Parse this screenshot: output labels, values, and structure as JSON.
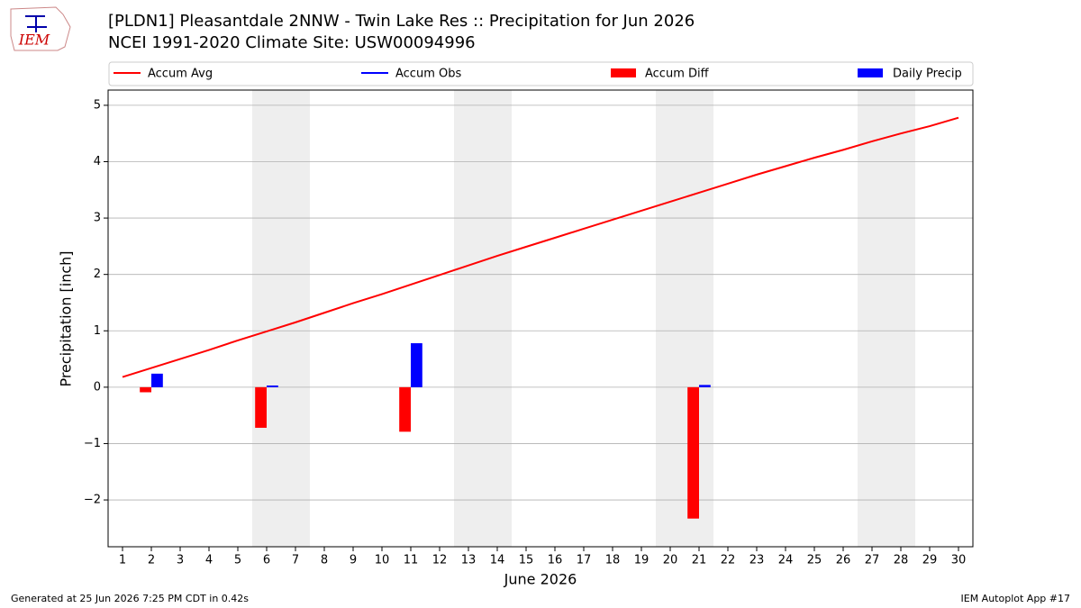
{
  "logo_text": "IEM",
  "footer": {
    "left": "Generated at 25 Jun 2026 7:25 PM CDT in 0.42s",
    "right": "IEM Autoplot App #17"
  },
  "chart_data": {
    "type": "bar",
    "title": "[PLDN1] Pleasantdale 2NNW - Twin Lake Res :: Precipitation for Jun 2026",
    "subtitle": "NCEI 1991-2020 Climate Site: USW00094996",
    "x_label": "June 2026",
    "y_label": "Precipitation [inch]",
    "x": [
      1,
      2,
      3,
      4,
      5,
      6,
      7,
      8,
      9,
      10,
      11,
      12,
      13,
      14,
      15,
      16,
      17,
      18,
      19,
      20,
      21,
      22,
      23,
      24,
      25,
      26,
      27,
      28,
      29,
      30
    ],
    "xlim": [
      0.5,
      30.5
    ],
    "xticks": [
      1,
      2,
      3,
      4,
      5,
      6,
      7,
      8,
      9,
      10,
      11,
      12,
      13,
      14,
      15,
      16,
      17,
      18,
      19,
      20,
      21,
      22,
      23,
      24,
      25,
      26,
      27,
      28,
      29,
      30
    ],
    "ylim": [
      -2.83,
      5.27
    ],
    "yticks": [
      {
        "value": -2,
        "label": "−2"
      },
      {
        "value": -1,
        "label": "−1"
      },
      0,
      1,
      2,
      3,
      4,
      5
    ],
    "grid": true,
    "shaded_days": [
      6,
      7,
      13,
      14,
      20,
      21,
      27,
      28
    ],
    "series": [
      {
        "name": "Accum Avg",
        "type": "line",
        "color": "#ff0000",
        "values": [
          0.18,
          0.34,
          0.5,
          0.66,
          0.83,
          0.99,
          1.15,
          1.32,
          1.49,
          1.65,
          1.82,
          1.99,
          2.16,
          2.33,
          2.49,
          2.65,
          2.81,
          2.97,
          3.13,
          3.29,
          3.45,
          3.61,
          3.77,
          3.92,
          4.07,
          4.21,
          4.36,
          4.5,
          4.63,
          4.78
        ]
      },
      {
        "name": "Accum Obs",
        "type": "line",
        "color": "#0000ff",
        "values": [
          null,
          null,
          null,
          null,
          null,
          null,
          null,
          null,
          null,
          null,
          null,
          null,
          null,
          null,
          null,
          null,
          null,
          null,
          null,
          null,
          null,
          null,
          null,
          null,
          null,
          null,
          null,
          null,
          null,
          null
        ]
      },
      {
        "name": "Accum Diff",
        "type": "bar",
        "color": "#ff0000",
        "values": [
          null,
          -0.09,
          null,
          null,
          null,
          -0.72,
          null,
          null,
          null,
          null,
          -0.79,
          null,
          null,
          null,
          null,
          null,
          null,
          null,
          null,
          null,
          -2.33,
          null,
          null,
          null,
          null,
          null,
          null,
          null,
          null,
          null
        ]
      },
      {
        "name": "Daily Precip",
        "type": "bar",
        "color": "#0000ff",
        "values": [
          null,
          0.24,
          null,
          null,
          null,
          0.03,
          null,
          null,
          null,
          null,
          0.78,
          null,
          null,
          null,
          null,
          null,
          null,
          null,
          null,
          null,
          0.04,
          null,
          null,
          null,
          null,
          null,
          null,
          null,
          null,
          null
        ]
      }
    ]
  }
}
